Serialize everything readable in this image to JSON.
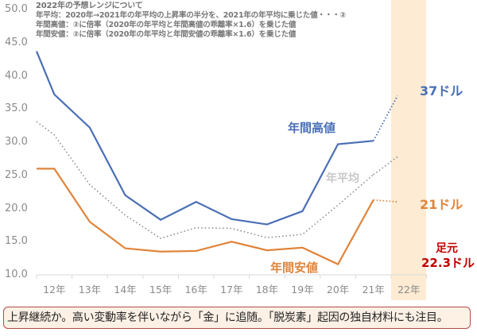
{
  "notes": {
    "title": "2022年の予想レンジについて",
    "line1": "年平均：2020年→2021年の年平均の上昇率の半分を、2021年の年平均に乗じた値・・・②",
    "line2": "年間高値：②に倍率（2020年の年平均と年間高値の乖離率×1.6）を乗じた値",
    "line3": "年間安値：②に倍率（2020年の年平均と年間安値の乖離率×1.6）を乗じた値"
  },
  "labels": {
    "high": "年間高値",
    "avg": "年平均",
    "low": "年間安値",
    "high_forecast": "37ドル",
    "low_forecast": "21ドル",
    "current_line1": "足元",
    "current_line2": "22.3ドル"
  },
  "footer": {
    "text": "上昇継続か。高い変動率を伴いながら「金」に追随。「脱炭素」起因の独自材料にも注目。"
  },
  "colors": {
    "high": "#4a6fb5",
    "avg": "#8c8c8c",
    "low": "#e0843a",
    "current": "#c00000",
    "highlight": "#fdebd3",
    "footer_border": "#b24a4a",
    "footer_bg": "#fdf1e6"
  },
  "chart_data": {
    "type": "line",
    "title": "2022年の予想レンジについて",
    "xlabel": "",
    "ylabel": "",
    "ylim": [
      10.0,
      50.0
    ],
    "yticks": [
      "50.0",
      "45.0",
      "40.0",
      "35.0",
      "30.0",
      "25.0",
      "20.0",
      "15.0",
      "10.0"
    ],
    "categories": [
      "12年",
      "13年",
      "14年",
      "15年",
      "16年",
      "17年",
      "18年",
      "19年",
      "20年",
      "21年",
      "22年"
    ],
    "grid": false,
    "legend": "inline labels",
    "series": [
      {
        "name": "年間高値",
        "style": "solid",
        "start_value": 43.7,
        "values": [
          37.2,
          32.2,
          22.0,
          18.3,
          21.0,
          18.4,
          17.6,
          19.6,
          29.7,
          30.2,
          null
        ],
        "forecast": {
          "from": "21年",
          "to": "22年",
          "value": 37.0,
          "label": "37ドル"
        }
      },
      {
        "name": "年平均",
        "style": "dotted",
        "start_value": 33.1,
        "values": [
          31.1,
          23.6,
          19.0,
          15.5,
          17.1,
          17.0,
          15.6,
          16.1,
          20.5,
          25.1,
          null
        ],
        "forecast": {
          "from": "21年",
          "to": "22年",
          "value": 27.8
        }
      },
      {
        "name": "年間安値",
        "style": "solid",
        "start_value": 26.0,
        "values": [
          26.0,
          18.0,
          14.0,
          13.5,
          13.6,
          15.0,
          13.7,
          14.1,
          11.6,
          21.3,
          null
        ],
        "forecast": {
          "from": "21年",
          "to": "22年",
          "value": 21.0,
          "label": "21ドル"
        }
      }
    ],
    "annotations": [
      "37ドル",
      "21ドル",
      "足元 22.3ドル",
      "年間高値",
      "年平均",
      "年間安値"
    ],
    "highlight_category": "22年"
  }
}
